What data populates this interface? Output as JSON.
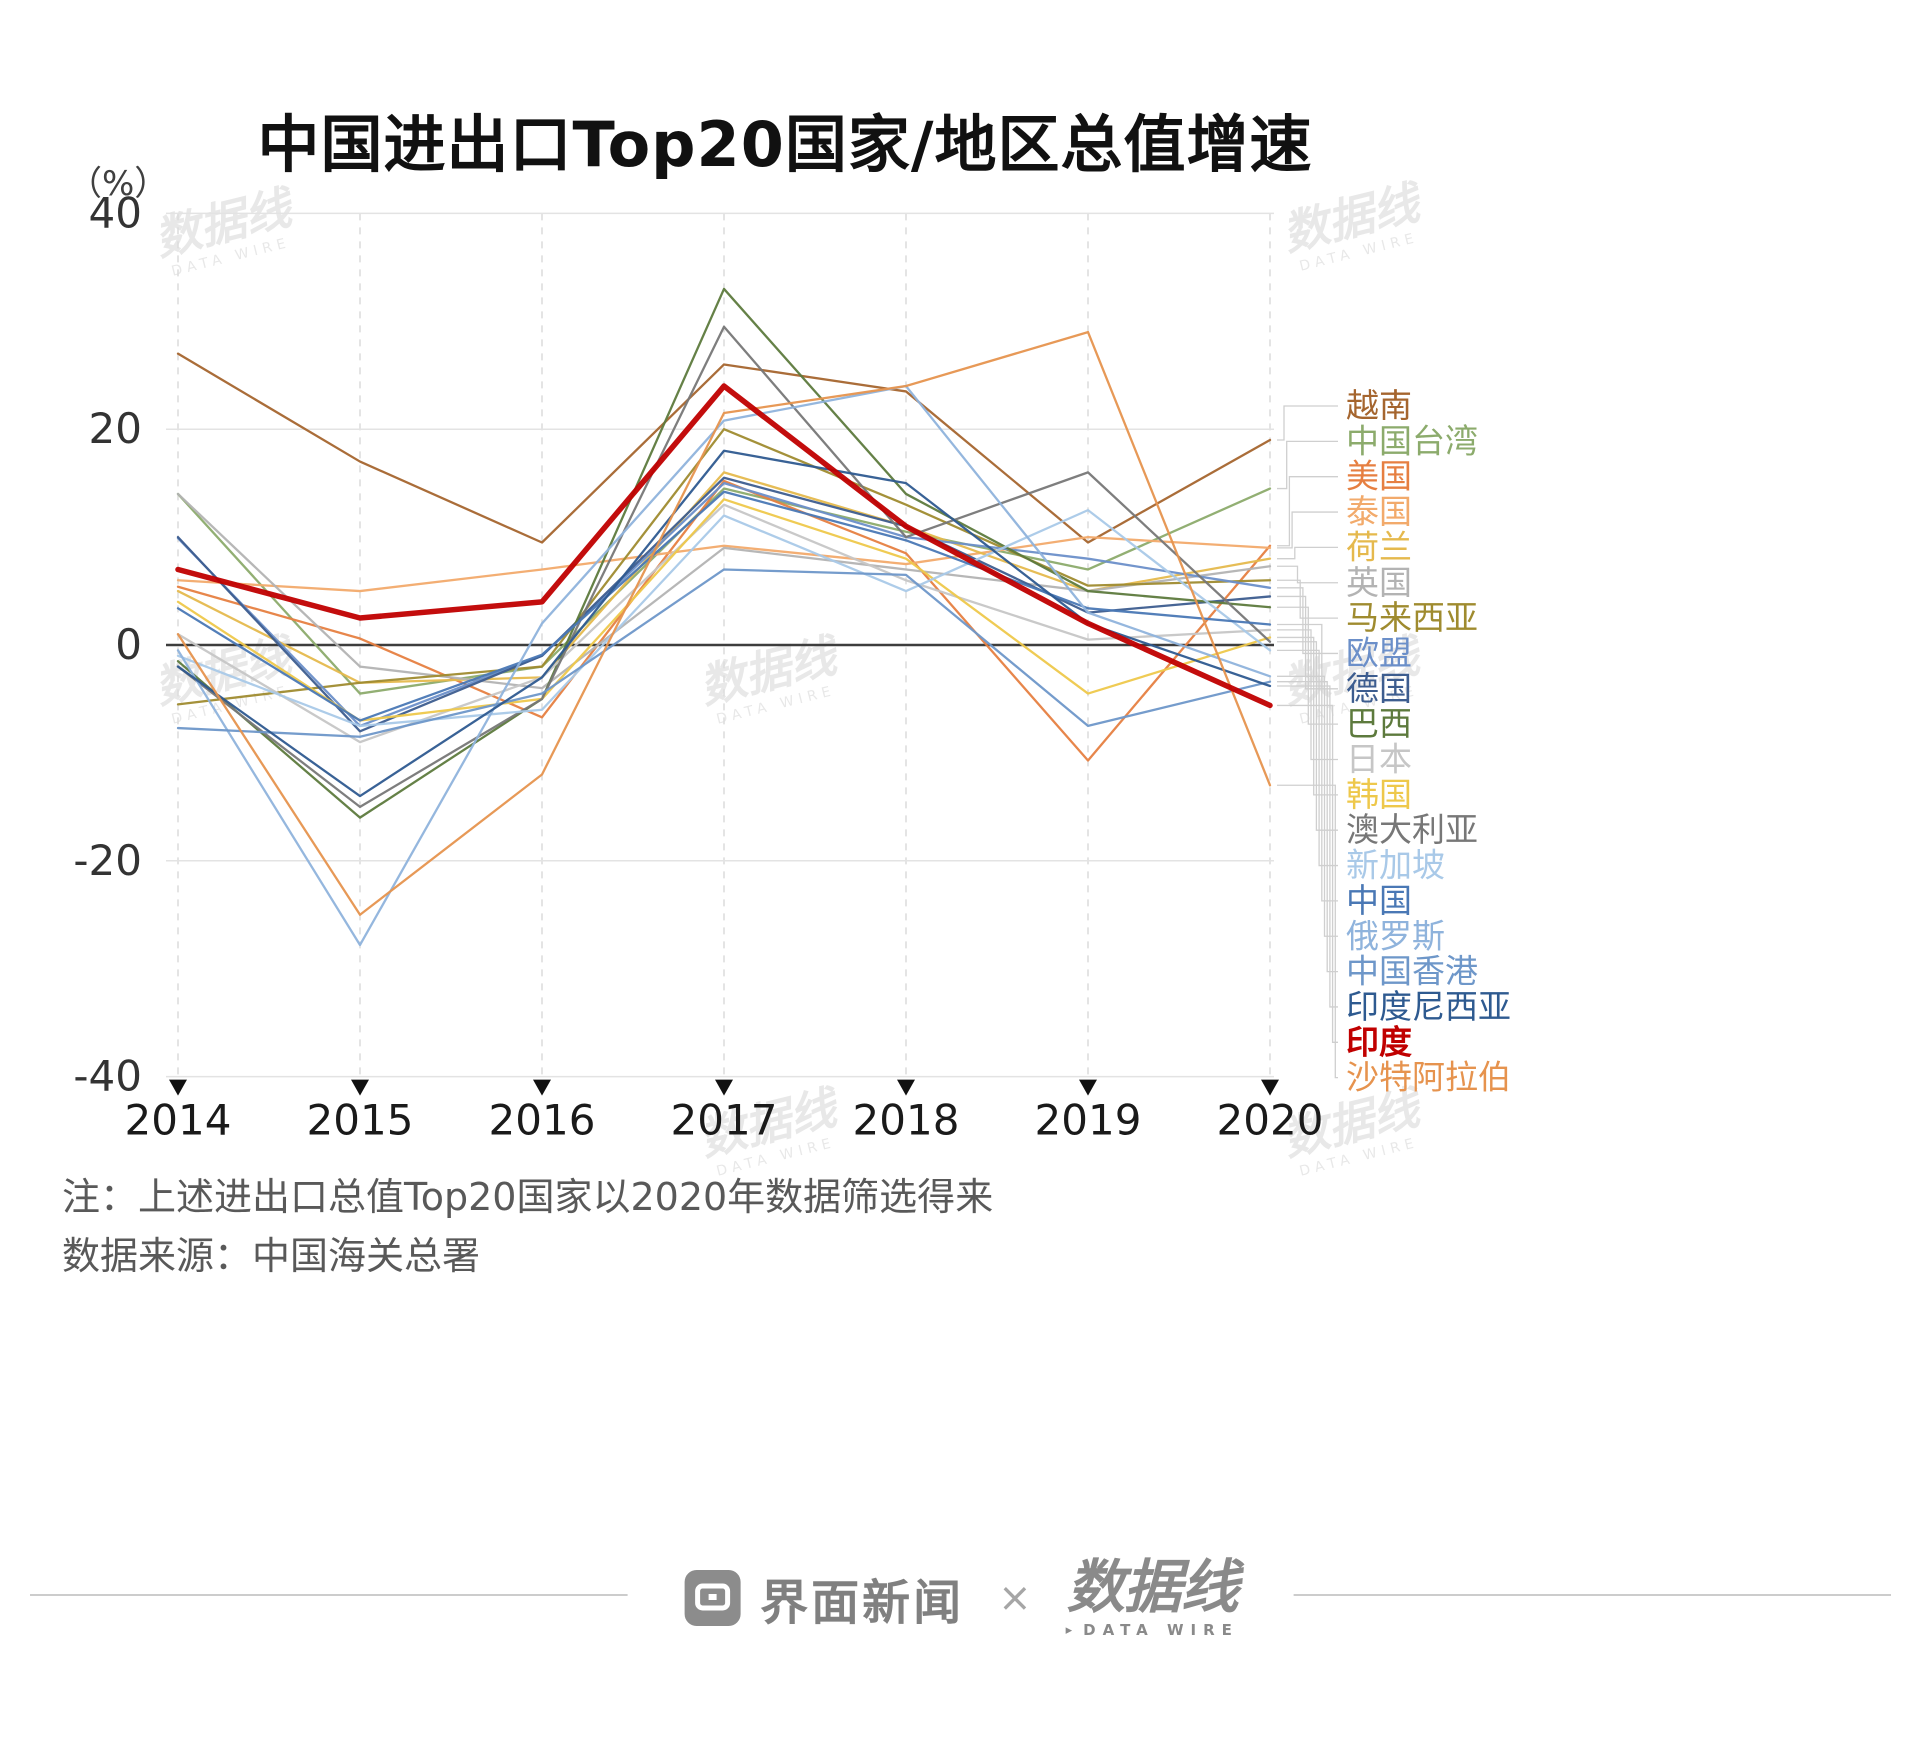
{
  "title": "中国进出口Top20国家/地区总值增速",
  "unit_label": "（%）",
  "chart_data": {
    "type": "line",
    "x": [
      2014,
      2015,
      2016,
      2017,
      2018,
      2019,
      2020
    ],
    "x_labels": [
      "2014",
      "2015",
      "2016",
      "2017",
      "2018",
      "2019",
      "2020"
    ],
    "y_ticks": [
      40,
      20,
      0,
      -20,
      -40
    ],
    "y_tick_labels": [
      "40",
      "20",
      "0",
      "-20",
      "-40"
    ],
    "ylim": [
      -40,
      40
    ],
    "grid": {
      "vertical": "dashed",
      "horizontal": "solid",
      "zero_line": "#3d3d3d"
    },
    "legend_position": "right",
    "highlight_series": "印度",
    "series": [
      {
        "name": "越南",
        "color": "#a5652e",
        "values": [
          27,
          17,
          9.5,
          26,
          23.5,
          9.5,
          19.0
        ]
      },
      {
        "name": "中国台湾",
        "color": "#8cab6c",
        "values": [
          14,
          -4.5,
          -2,
          14.5,
          10.5,
          7,
          14.5
        ]
      },
      {
        "name": "美国",
        "color": "#e67f41",
        "values": [
          5.4,
          0.6,
          -6.7,
          15.2,
          8.5,
          -10.7,
          9.2
        ]
      },
      {
        "name": "泰国",
        "color": "#f2aa6b",
        "values": [
          6,
          5,
          7,
          9.2,
          7.5,
          10,
          9.0
        ]
      },
      {
        "name": "荷兰",
        "color": "#e5b94d",
        "values": [
          5,
          -3.5,
          -3,
          16,
          11,
          5,
          8.0
        ]
      },
      {
        "name": "英国",
        "color": "#b3b3b3",
        "values": [
          14,
          -2,
          -4,
          9,
          7,
          5,
          7.3
        ]
      },
      {
        "name": "马来西亚",
        "color": "#9f8b2f",
        "values": [
          -5.5,
          -3.5,
          -2,
          20,
          13,
          5.5,
          6.0
        ]
      },
      {
        "name": "欧盟",
        "color": "#6b8fc9",
        "values": [
          9.9,
          -7.5,
          -1,
          15,
          10,
          8,
          5.3
        ]
      },
      {
        "name": "德国",
        "color": "#3d5d8f",
        "values": [
          10,
          -8,
          -1,
          15.5,
          11,
          3,
          4.5
        ]
      },
      {
        "name": "巴西",
        "color": "#5d7a3d",
        "values": [
          -1.5,
          -16,
          -5,
          33,
          14,
          5,
          3.5
        ]
      },
      {
        "name": "日本",
        "color": "#c6c6c6",
        "values": [
          1,
          -9,
          -3,
          13,
          6,
          0.5,
          1.4
        ]
      },
      {
        "name": "韩国",
        "color": "#eec84b",
        "values": [
          4,
          -7,
          -5,
          13.5,
          8,
          -4.5,
          0.7
        ]
      },
      {
        "name": "澳大利亚",
        "color": "#777777",
        "values": [
          -2,
          -15,
          -5,
          29.5,
          10,
          16,
          0.3
        ]
      },
      {
        "name": "新加坡",
        "color": "#a9c9e8",
        "values": [
          -1,
          -7.5,
          -6,
          12,
          5,
          12.5,
          -0.5
        ]
      },
      {
        "name": "中国",
        "color": "#4a78b5",
        "values": [
          3.4,
          -7,
          -0.9,
          14.2,
          9.7,
          3.4,
          1.9
        ]
      },
      {
        "name": "俄罗斯",
        "color": "#8fb3dc",
        "values": [
          -0.5,
          -27.8,
          2,
          20.8,
          24,
          3,
          -2.9
        ]
      },
      {
        "name": "中国香港",
        "color": "#6e97c9",
        "values": [
          -7.7,
          -8.5,
          -4.5,
          7,
          6.5,
          -7.5,
          -3.4
        ]
      },
      {
        "name": "印度尼西亚",
        "color": "#2e5a90",
        "values": [
          -2,
          -14,
          -3,
          18,
          15,
          2,
          -3.8
        ]
      },
      {
        "name": "印度",
        "color": "#c00000",
        "values": [
          7,
          2.5,
          4,
          24,
          11,
          2,
          -5.6
        ],
        "bold": true
      },
      {
        "name": "沙特阿拉伯",
        "color": "#e6934e",
        "values": [
          1,
          -25,
          -12,
          21.5,
          24,
          29,
          -13
        ]
      }
    ]
  },
  "notes": {
    "line1": "注：上述进出口总值Top20国家以2020年数据筛选得来",
    "line2": "数据来源：中国海关总署"
  },
  "footer": {
    "jiemian_label": "界面新闻",
    "separator": "×",
    "datawire_label": "数据线",
    "datawire_sub": "DATA WIRE",
    "play_glyph": "▸"
  },
  "watermark": {
    "text": "数据线",
    "sub": "DATA WIRE"
  },
  "colors": {
    "highlight": "#c00000",
    "grid_line": "#e3e3e3",
    "grid_dash": "#dcdcdc",
    "zero_line": "#3d3d3d",
    "leader_line": "#cfcfcf",
    "axis_text": "#333333"
  }
}
